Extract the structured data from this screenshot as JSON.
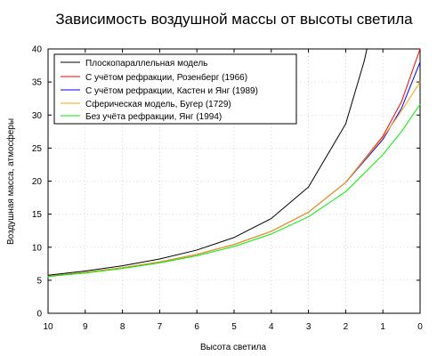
{
  "chart_data": {
    "type": "line",
    "title": "Зависимость воздушной массы от высоты светила",
    "xlabel": "Высота светила",
    "ylabel": "Воздушная масса, атмосферы",
    "xlim": [
      10,
      0
    ],
    "ylim": [
      0,
      40
    ],
    "x_ticks": [
      10,
      9,
      8,
      7,
      6,
      5,
      4,
      3,
      2,
      1,
      0
    ],
    "y_ticks": [
      0,
      5,
      10,
      15,
      20,
      25,
      30,
      35,
      40
    ],
    "grid": true,
    "legend_position": "top-left",
    "series": [
      {
        "name": "Плоскопараллельная модель",
        "color": "#000000",
        "points": [
          [
            10,
            5.76
          ],
          [
            9,
            6.39
          ],
          [
            8,
            7.19
          ],
          [
            7,
            8.21
          ],
          [
            6,
            9.57
          ],
          [
            5,
            11.47
          ],
          [
            4,
            14.34
          ],
          [
            3,
            19.11
          ],
          [
            2,
            28.65
          ],
          [
            1.5,
            38.2
          ],
          [
            1.43,
            40.0
          ]
        ]
      },
      {
        "name": "С учётом рефракции, Розенберг (1966)",
        "color": "#ff0000",
        "points": [
          [
            10,
            5.6
          ],
          [
            9,
            6.18
          ],
          [
            8,
            6.88
          ],
          [
            7,
            7.77
          ],
          [
            6,
            8.9
          ],
          [
            5,
            10.4
          ],
          [
            4,
            12.4
          ],
          [
            3,
            15.3
          ],
          [
            2,
            19.8
          ],
          [
            1,
            26.8
          ],
          [
            0.5,
            32.0
          ],
          [
            0,
            40.0
          ]
        ]
      },
      {
        "name": "С учётом рефракции, Кастен и Янг (1989)",
        "color": "#0000ff",
        "points": [
          [
            10,
            5.6
          ],
          [
            9,
            6.18
          ],
          [
            8,
            6.88
          ],
          [
            7,
            7.77
          ],
          [
            6,
            8.9
          ],
          [
            5,
            10.4
          ],
          [
            4,
            12.4
          ],
          [
            3,
            15.3
          ],
          [
            2,
            19.8
          ],
          [
            1,
            26.3
          ],
          [
            0.5,
            31.0
          ],
          [
            0,
            38.0
          ]
        ]
      },
      {
        "name": "Сферическая модель, Бугер (1729)",
        "color": "#ffa500",
        "points": [
          [
            10,
            5.6
          ],
          [
            9,
            6.18
          ],
          [
            8,
            6.88
          ],
          [
            7,
            7.77
          ],
          [
            6,
            8.9
          ],
          [
            5,
            10.4
          ],
          [
            4,
            12.4
          ],
          [
            3,
            15.3
          ],
          [
            2,
            19.8
          ],
          [
            1,
            26.6
          ],
          [
            0.5,
            30.6
          ],
          [
            0,
            35.0
          ]
        ]
      },
      {
        "name": "Без учёта рефракции, Янг (1994)",
        "color": "#00ee00",
        "points": [
          [
            10,
            5.55
          ],
          [
            9,
            6.1
          ],
          [
            8,
            6.78
          ],
          [
            7,
            7.62
          ],
          [
            6,
            8.7
          ],
          [
            5,
            10.1
          ],
          [
            4,
            12.0
          ],
          [
            3,
            14.6
          ],
          [
            2,
            18.4
          ],
          [
            1,
            24.0
          ],
          [
            0.5,
            27.5
          ],
          [
            0,
            31.6
          ]
        ]
      }
    ]
  }
}
